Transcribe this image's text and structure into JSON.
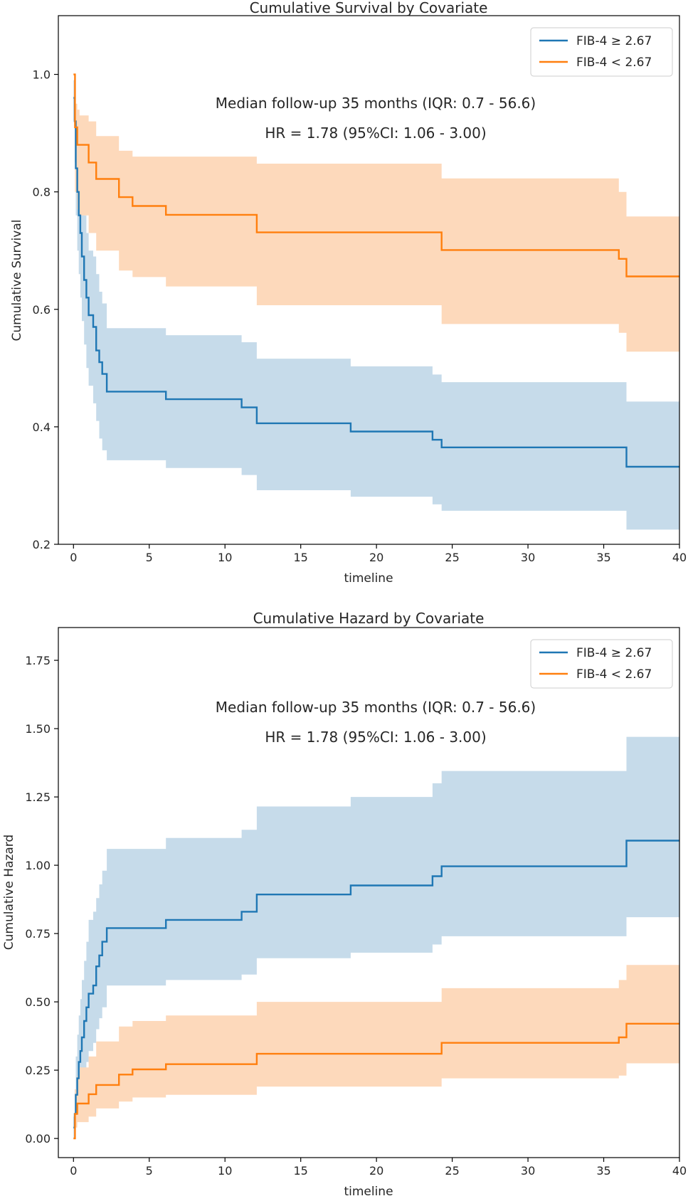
{
  "chart_data": [
    {
      "type": "line",
      "title": "Cumulative Survival by Covariate",
      "xlabel": "timeline",
      "ylabel": "Cumulative Survival",
      "xlim": [
        -1.0,
        40
      ],
      "ylim": [
        0.2,
        1.1
      ],
      "xticks": [
        0,
        5,
        10,
        15,
        20,
        25,
        30,
        35,
        40
      ],
      "xtick_labels": [
        "0",
        "5",
        "10",
        "15",
        "20",
        "25",
        "30",
        "35",
        "40"
      ],
      "yticks": [
        0.2,
        0.4,
        0.6,
        0.8,
        1.0
      ],
      "ytick_labels": [
        "0.2",
        "0.4",
        "0.6",
        "0.8",
        "1.0"
      ],
      "grid": false,
      "legend_position": "top-right",
      "annotations": [
        "Median follow-up 35 months (IQR: 0.7 - 56.6)",
        "HR = 1.78 (95%CI: 1.06 - 3.00)"
      ],
      "series": [
        {
          "name": "FIB-4 ≥ 2.67",
          "color": "#1f77b4",
          "band_color": "#c6dbea",
          "x": [
            0,
            0.08,
            0.15,
            0.25,
            0.35,
            0.45,
            0.55,
            0.7,
            0.85,
            1.0,
            1.3,
            1.5,
            1.7,
            1.9,
            2.2,
            6.1,
            11.1,
            12.1,
            18.3,
            23.7,
            24.3,
            36.5,
            40
          ],
          "y": [
            0.96,
            0.92,
            0.84,
            0.8,
            0.76,
            0.73,
            0.69,
            0.65,
            0.62,
            0.59,
            0.57,
            0.53,
            0.51,
            0.49,
            0.46,
            0.447,
            0.433,
            0.406,
            0.392,
            0.378,
            0.365,
            0.332,
            0.332
          ],
          "lower": [
            0.92,
            0.85,
            0.76,
            0.7,
            0.66,
            0.62,
            0.58,
            0.54,
            0.5,
            0.47,
            0.44,
            0.41,
            0.38,
            0.36,
            0.343,
            0.33,
            0.318,
            0.292,
            0.281,
            0.268,
            0.257,
            0.225,
            0.225
          ],
          "upper": [
            0.99,
            0.97,
            0.91,
            0.88,
            0.85,
            0.82,
            0.79,
            0.76,
            0.73,
            0.7,
            0.69,
            0.66,
            0.63,
            0.61,
            0.568,
            0.556,
            0.544,
            0.516,
            0.503,
            0.489,
            0.476,
            0.443,
            0.443
          ]
        },
        {
          "name": "FIB-4 < 2.67",
          "color": "#ff7f0e",
          "band_color": "#fdd9bb",
          "x": [
            0,
            0.1,
            0.25,
            0.4,
            1.0,
            1.5,
            3.0,
            3.9,
            6.1,
            12.1,
            24.3,
            36.0,
            36.5,
            40
          ],
          "y": [
            1.0,
            0.91,
            0.88,
            0.88,
            0.85,
            0.822,
            0.791,
            0.776,
            0.761,
            0.731,
            0.701,
            0.686,
            0.656,
            0.656
          ],
          "lower": [
            1.0,
            0.8,
            0.77,
            0.76,
            0.73,
            0.7,
            0.666,
            0.655,
            0.639,
            0.607,
            0.575,
            0.56,
            0.528,
            0.528
          ],
          "upper": [
            1.0,
            0.95,
            0.94,
            0.93,
            0.92,
            0.895,
            0.87,
            0.86,
            0.86,
            0.848,
            0.823,
            0.8,
            0.758,
            0.758
          ]
        }
      ]
    },
    {
      "type": "line",
      "title": "Cumulative Hazard by Covariate",
      "xlabel": "timeline",
      "ylabel": "Cumulative Hazard",
      "xlim": [
        -1.0,
        40
      ],
      "ylim": [
        -0.07,
        1.87
      ],
      "xticks": [
        0,
        5,
        10,
        15,
        20,
        25,
        30,
        35,
        40
      ],
      "xtick_labels": [
        "0",
        "5",
        "10",
        "15",
        "20",
        "25",
        "30",
        "35",
        "40"
      ],
      "yticks": [
        0,
        0.25,
        0.5,
        0.75,
        1.0,
        1.25,
        1.5,
        1.75
      ],
      "ytick_labels": [
        "0.00",
        "0.25",
        "0.50",
        "0.75",
        "1.00",
        "1.25",
        "1.50",
        "1.75"
      ],
      "grid": false,
      "legend_position": "top-right",
      "annotations": [
        "Median follow-up 35 months (IQR: 0.7 - 56.6)",
        "HR = 1.78 (95%CI: 1.06 - 3.00)"
      ],
      "series": [
        {
          "name": "FIB-4 ≥ 2.67",
          "color": "#1f77b4",
          "band_color": "#c6dbea",
          "x": [
            0,
            0.08,
            0.15,
            0.25,
            0.35,
            0.45,
            0.55,
            0.7,
            0.85,
            1.0,
            1.3,
            1.5,
            1.7,
            1.9,
            2.2,
            6.1,
            11.1,
            12.1,
            18.3,
            23.7,
            24.3,
            36.5,
            40
          ],
          "y": [
            0.04,
            0.09,
            0.16,
            0.22,
            0.28,
            0.32,
            0.37,
            0.43,
            0.48,
            0.53,
            0.56,
            0.63,
            0.67,
            0.72,
            0.77,
            0.8,
            0.83,
            0.893,
            0.926,
            0.96,
            0.996,
            1.09,
            1.09
          ],
          "lower": [
            0.0,
            0.02,
            0.05,
            0.09,
            0.12,
            0.16,
            0.2,
            0.24,
            0.28,
            0.32,
            0.35,
            0.4,
            0.44,
            0.48,
            0.56,
            0.58,
            0.6,
            0.66,
            0.68,
            0.71,
            0.74,
            0.81,
            0.81
          ],
          "upper": [
            0.08,
            0.18,
            0.3,
            0.38,
            0.45,
            0.51,
            0.58,
            0.65,
            0.72,
            0.8,
            0.83,
            0.88,
            0.93,
            0.98,
            1.06,
            1.1,
            1.13,
            1.215,
            1.25,
            1.3,
            1.345,
            1.47,
            1.47
          ]
        },
        {
          "name": "FIB-4 < 2.67",
          "color": "#ff7f0e",
          "band_color": "#fdd9bb",
          "x": [
            0,
            0.1,
            0.25,
            0.4,
            1.0,
            1.5,
            3.0,
            3.9,
            6.1,
            12.1,
            24.3,
            36.0,
            36.5,
            40
          ],
          "y": [
            0.0,
            0.09,
            0.128,
            0.128,
            0.162,
            0.196,
            0.234,
            0.253,
            0.272,
            0.31,
            0.35,
            0.37,
            0.42,
            0.42
          ],
          "lower": [
            0.0,
            0.04,
            0.06,
            0.06,
            0.08,
            0.11,
            0.135,
            0.15,
            0.16,
            0.19,
            0.22,
            0.23,
            0.275,
            0.275
          ],
          "upper": [
            0.0,
            0.18,
            0.23,
            0.26,
            0.3,
            0.355,
            0.41,
            0.43,
            0.45,
            0.5,
            0.55,
            0.58,
            0.635,
            0.635
          ]
        }
      ]
    }
  ]
}
